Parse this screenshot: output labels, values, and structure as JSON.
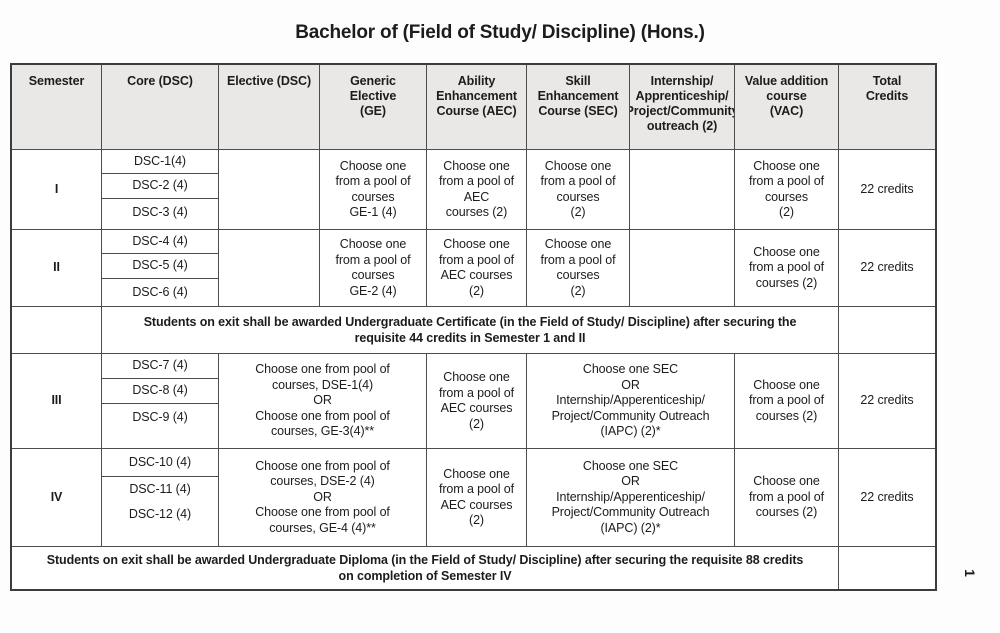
{
  "page": {
    "title": "Bachelor of (Field of Study/ Discipline) (Hons.)",
    "page_number": "1"
  },
  "table": {
    "headers": [
      "Semester",
      "Core (DSC)",
      "Elective (DSC)",
      "Generic\nElective\n(GE)",
      "Ability\nEnhancement\nCourse (AEC)",
      "Skill\nEnhancement\nCourse (SEC)",
      "Internship/\nApprenticeship/\nProject/Community\noutreach (2)",
      "Value addition\ncourse\n(VAC)",
      "Total\nCredits"
    ],
    "rows": [
      {
        "semester": "I",
        "core": [
          "DSC-1(4)",
          "DSC-2 (4)",
          "DSC-3 (4)"
        ],
        "elective": "",
        "ge": "Choose one\nfrom a pool of\ncourses\nGE-1 (4)",
        "aec": "Choose one\nfrom a pool of\nAEC\ncourses (2)",
        "sec": "Choose one\nfrom a pool of\ncourses\n(2)",
        "internship": "",
        "vac": "Choose one\nfrom a pool of\ncourses\n(2)",
        "total": "22 credits"
      },
      {
        "semester": "II",
        "core": [
          "DSC-4 (4)",
          "DSC-5 (4)",
          "DSC-6 (4)"
        ],
        "elective": "",
        "ge": "Choose one\nfrom a pool of\ncourses\nGE-2 (4)",
        "aec": "Choose one\nfrom a pool of\nAEC courses\n(2)",
        "sec": "Choose one\nfrom a pool of\ncourses\n(2)",
        "internship": "",
        "vac": "Choose one\nfrom a pool of\ncourses (2)",
        "total": "22 credits"
      },
      {
        "semester": "III",
        "core": [
          "DSC-7 (4)",
          "DSC-8 (4)",
          "DSC-9 (4)"
        ],
        "elective_ge": "Choose one from pool of\ncourses, DSE-1(4)\nOR\nChoose one from pool of\ncourses, GE-3(4)**",
        "aec": "Choose one\nfrom a pool of\nAEC courses\n(2)",
        "sec_iapc": "Choose one SEC\nOR\nInternship/Apperenticeship/\nProject/Community Outreach\n(IAPC) (2)*",
        "vac": "Choose one\nfrom a pool of\ncourses (2)",
        "total": "22 credits"
      },
      {
        "semester": "IV",
        "core": [
          "DSC-10 (4)",
          "DSC-11 (4)",
          "DSC-12 (4)"
        ],
        "elective_ge": "Choose one from pool of\ncourses, DSE-2 (4)\nOR\nChoose one from pool of\ncourses, GE-4 (4)**",
        "aec": "Choose one\nfrom a pool of\nAEC courses\n(2)",
        "sec_iapc": "Choose one SEC\nOR\nInternship/Apperenticeship/\nProject/Community Outreach\n(IAPC) (2)*",
        "vac": "Choose one\nfrom a pool of\ncourses (2)",
        "total": "22 credits"
      }
    ],
    "exit_rows": [
      {
        "text": "Students on exit shall be awarded Undergraduate Certificate (in the Field of Study/ Discipline) after securing the\nrequisite 44 credits in Semester 1 and II"
      },
      {
        "text": "Students on exit shall be awarded Undergraduate Diploma (in the Field of Study/ Discipline) after securing the requisite 88 credits\non completion of Semester IV"
      }
    ]
  }
}
